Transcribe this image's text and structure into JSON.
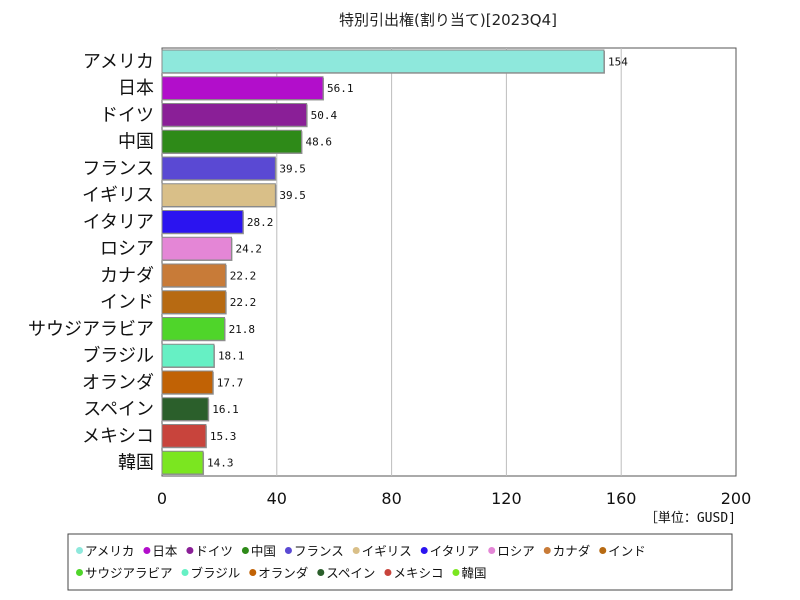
{
  "chart_data": {
    "type": "bar",
    "orientation": "horizontal",
    "title": "特別引出権(割り当て)[2023Q4]",
    "unit_label": "［単位：GUSD]",
    "categories": [
      "アメリカ",
      "日本",
      "ドイツ",
      "中国",
      "フランス",
      "イギリス",
      "イタリア",
      "ロシア",
      "カナダ",
      "インド",
      "サウジアラビア",
      "ブラジル",
      "オランダ",
      "スペイン",
      "メキシコ",
      "韓国"
    ],
    "values": [
      154,
      56.1,
      50.4,
      48.6,
      39.5,
      39.5,
      28.2,
      24.2,
      22.2,
      22.2,
      21.8,
      18.1,
      17.7,
      16.1,
      15.3,
      14.3
    ],
    "value_labels": [
      "154",
      "56.1",
      "50.4",
      "48.6",
      "39.5",
      "39.5",
      "28.2",
      "24.2",
      "22.2",
      "22.2",
      "21.8",
      "18.1",
      "17.7",
      "16.1",
      "15.3",
      "14.3"
    ],
    "colors": [
      "#8ee8dc",
      "#b20ecb",
      "#8a1f97",
      "#2e8a18",
      "#5a49d3",
      "#d9bf88",
      "#2b14f0",
      "#e486d6",
      "#c87b38",
      "#b76a12",
      "#4fd52a",
      "#66f0c4",
      "#c16205",
      "#2b5f2b",
      "#c8443c",
      "#7be620"
    ],
    "xlim": [
      0,
      200
    ],
    "xticks": [
      0,
      40,
      80,
      120,
      160,
      200
    ],
    "xtick_labels": [
      "0",
      "40",
      "80",
      "120",
      "160",
      "200"
    ],
    "grid": "vertical",
    "legend_position": "bottom"
  }
}
